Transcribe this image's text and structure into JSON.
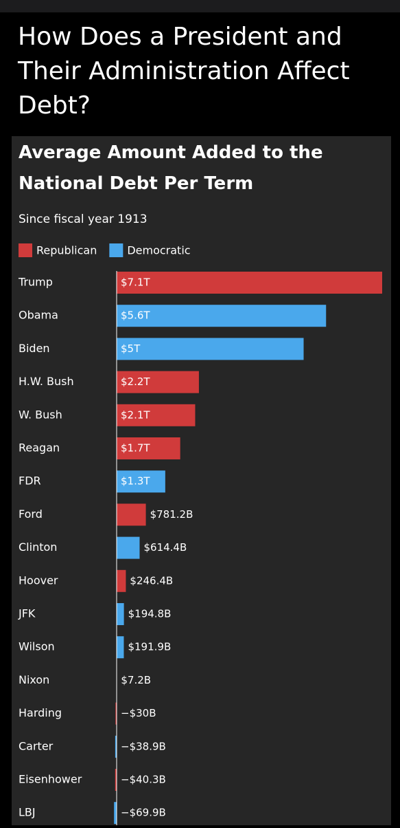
{
  "header": {
    "title": "How Does a President and Their Administration Affect Debt?"
  },
  "chart_data": {
    "type": "bar",
    "orientation": "horizontal",
    "title": "Average Amount Added to the National Debt Per Term",
    "subtitle": "Since fiscal year 1913",
    "categories": [
      "Trump",
      "Obama",
      "Biden",
      "H.W. Bush",
      "W. Bush",
      "Reagan",
      "FDR",
      "Ford",
      "Clinton",
      "Hoover",
      "JFK",
      "Wilson",
      "Nixon",
      "Harding",
      "Carter",
      "Eisenhower",
      "LBJ"
    ],
    "series": [
      {
        "name": "Republican",
        "color": "#d03b3b",
        "values": [
          7100,
          null,
          null,
          2200,
          2100,
          1700,
          null,
          781.2,
          null,
          246.4,
          null,
          null,
          7.2,
          -30,
          null,
          -40.3,
          null
        ],
        "value_labels": [
          "$7.1T",
          null,
          null,
          "$2.2T",
          "$2.1T",
          "$1.7T",
          null,
          "$781.2B",
          null,
          "$246.4B",
          null,
          null,
          "$7.2B",
          "−$30B",
          null,
          "−$40.3B",
          null
        ]
      },
      {
        "name": "Democratic",
        "color": "#4aa8ec",
        "values": [
          null,
          5600,
          5000,
          null,
          null,
          null,
          1300,
          null,
          614.4,
          null,
          194.8,
          191.9,
          null,
          null,
          -38.9,
          null,
          -69.9
        ],
        "value_labels": [
          null,
          "$5.6T",
          "$5T",
          null,
          null,
          null,
          "$1.3T",
          null,
          "$614.4B",
          null,
          "$194.8B",
          "$191.9B",
          null,
          null,
          "−$38.9B",
          null,
          "−$69.9B"
        ]
      }
    ]
  }
}
